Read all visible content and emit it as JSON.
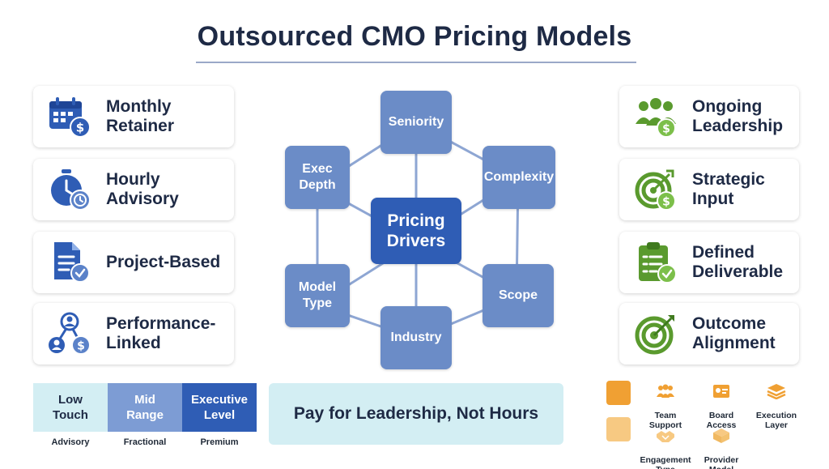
{
  "title": "Outsourced CMO Pricing Models",
  "left_models": [
    {
      "label": "Monthly\nRetainer",
      "icon": "calendar-dollar-icon"
    },
    {
      "label": "Hourly\nAdvisory",
      "icon": "stopwatch-clock-icon"
    },
    {
      "label": "Project-Based",
      "icon": "document-check-icon"
    },
    {
      "label": "Performance-\nLinked",
      "icon": "people-network-dollar-icon"
    }
  ],
  "right_models": [
    {
      "label": "Ongoing\nLeadership",
      "icon": "team-dollar-icon"
    },
    {
      "label": "Strategic\nInput",
      "icon": "target-dollar-icon"
    },
    {
      "label": "Defined\nDeliverable",
      "icon": "clipboard-check-icon"
    },
    {
      "label": "Outcome\nAlignment",
      "icon": "target-arrow-icon"
    }
  ],
  "drivers": {
    "center": "Pricing\nDrivers",
    "nodes": {
      "seniority": "Seniority",
      "complexity": "Complexity",
      "scope": "Scope",
      "industry": "Industry",
      "model_type": "Model\nType",
      "exec_depth": "Exec\nDepth"
    }
  },
  "tiers": [
    {
      "label": "Low\nTouch",
      "caption": "Advisory"
    },
    {
      "label": "Mid\nRange",
      "caption": "Fractional"
    },
    {
      "label": "Executive\nLevel",
      "caption": "Premium"
    }
  ],
  "banner": "Pay for Leadership, Not Hours",
  "legend": {
    "items": [
      "Team\nSupport",
      "Board\nAccess",
      "Execution\nLayer",
      "Engagement\nType",
      "Provider\nModel"
    ]
  },
  "colors": {
    "navy": "#1e2a45",
    "blue_icon": "#2f5db5",
    "green_icon": "#5a9a2e",
    "node": "#6b8cc7",
    "center_node": "#2f5db5",
    "orange": "#f0a033",
    "light_orange": "#f7c982"
  }
}
